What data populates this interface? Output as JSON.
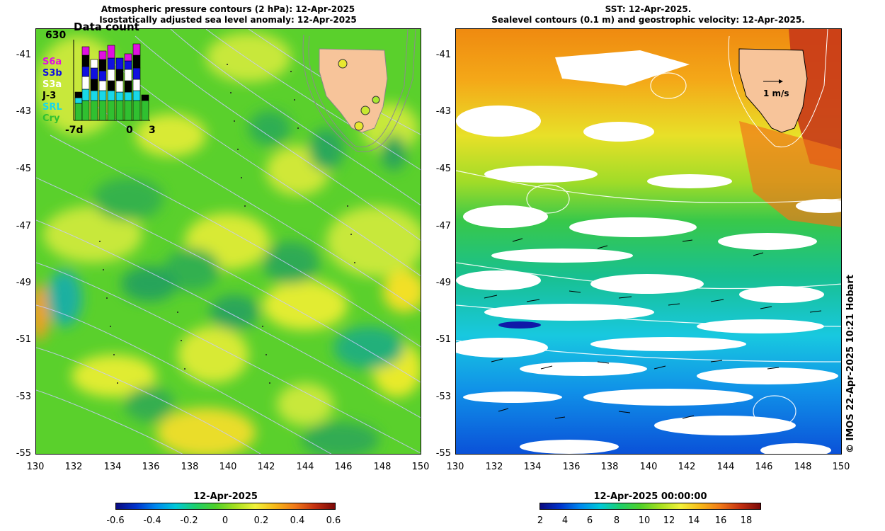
{
  "left_title": {
    "line1": "Atmospheric pressure contours (2 hPa): 12-Apr-2025",
    "line2": "Isostatically adjusted sea level anomaly: 12-Apr-2025"
  },
  "right_title": {
    "line1": "SST: 12-Apr-2025.",
    "line2": "Sealevel contours (0.1 m) and geostrophic velocity: 12-Apr-2025."
  },
  "y_ticks": [
    "-41",
    "-43",
    "-45",
    "-47",
    "-49",
    "-51",
    "-53",
    "-55"
  ],
  "x_ticks": [
    "130",
    "132",
    "134",
    "136",
    "138",
    "140",
    "142",
    "144",
    "146",
    "148",
    "150"
  ],
  "inset": {
    "count": "630",
    "label": "Data count",
    "x_left": "-7d",
    "x_mid": "0",
    "x_right": "3",
    "legend": [
      {
        "name": "S6a",
        "color": "#e010e0"
      },
      {
        "name": "S3b",
        "color": "#1010e0"
      },
      {
        "name": "S3a",
        "color": "#ffffff"
      },
      {
        "name": "J-3",
        "color": "#000000"
      },
      {
        "name": "SRL",
        "color": "#18d8e8"
      },
      {
        "name": "Cry",
        "color": "#30c030"
      }
    ]
  },
  "velocity_label": "1 m/s",
  "left_colorbar": {
    "title": "12-Apr-2025",
    "ticks": [
      "-0.6",
      "-0.4",
      "-0.2",
      "0",
      "0.2",
      "0.4",
      "0.6"
    ]
  },
  "right_colorbar": {
    "title": "12-Apr-2025 00:00:00",
    "ticks": [
      "2",
      "4",
      "6",
      "8",
      "10",
      "12",
      "14",
      "16",
      "18"
    ]
  },
  "copyright": "© IMOS 22-Apr-2025 10:21 Hobart",
  "colors": {
    "land": "#f7c49a",
    "sla_background": "#5ad02c",
    "pressure_contour": "#c8c8ff",
    "sealevel_contour": "#ffffff"
  }
}
